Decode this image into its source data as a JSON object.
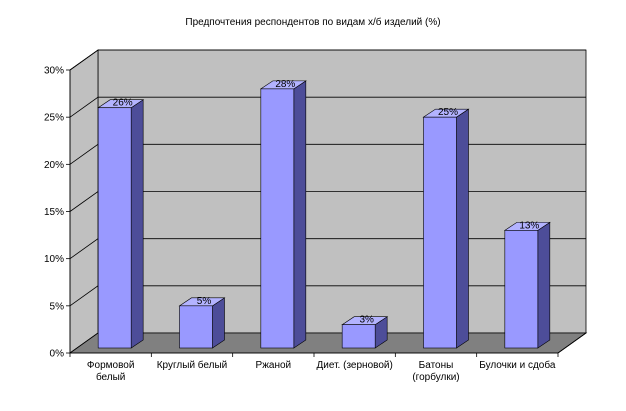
{
  "chart_data": {
    "type": "bar",
    "title": "Предпочтения респондентов по видам х/б изделий (%)",
    "xlabel": "",
    "ylabel": "",
    "categories": [
      [
        "Формовой",
        "белый"
      ],
      [
        "Круглый белый"
      ],
      [
        "Ржаной"
      ],
      [
        "Диет. (зерновой)"
      ],
      [
        "Батоны",
        "(горбулки)"
      ],
      [
        "Булочки и сдоба"
      ]
    ],
    "values": [
      26,
      5,
      28,
      3,
      25,
      13
    ],
    "value_labels": [
      "26%",
      "5%",
      "28%",
      "3%",
      "25%",
      "13%"
    ],
    "ylim": [
      0,
      30
    ],
    "yticks": [
      0,
      5,
      10,
      15,
      20,
      25,
      30
    ],
    "ytick_labels": [
      "0%",
      "5%",
      "10%",
      "15%",
      "20%",
      "25%",
      "30%"
    ],
    "grid": true,
    "legend": "none",
    "colors": {
      "bar_front": "#9999ff",
      "bar_top": "#b3b3ff",
      "bar_side": "#4d4d99",
      "bar_stroke": "#000000",
      "back_wall": "#c0c0c0",
      "side_wall": "#c0c0c0",
      "floor": "#808080",
      "gridline": "#000000"
    }
  }
}
